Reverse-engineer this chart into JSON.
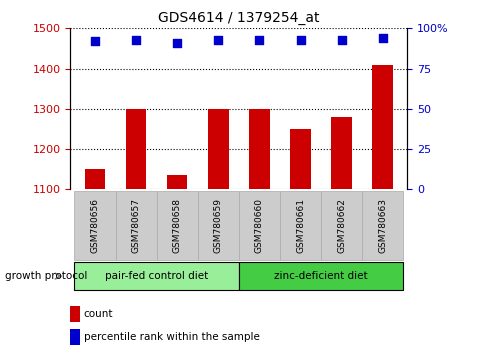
{
  "title": "GDS4614 / 1379254_at",
  "samples": [
    "GSM780656",
    "GSM780657",
    "GSM780658",
    "GSM780659",
    "GSM780660",
    "GSM780661",
    "GSM780662",
    "GSM780663"
  ],
  "counts": [
    1150,
    1300,
    1135,
    1300,
    1300,
    1250,
    1280,
    1410
  ],
  "percentiles": [
    92,
    93,
    91,
    93,
    93,
    93,
    93,
    94
  ],
  "ylim_left": [
    1100,
    1500
  ],
  "ylim_right": [
    0,
    100
  ],
  "yticks_left": [
    1100,
    1200,
    1300,
    1400,
    1500
  ],
  "yticks_right": [
    0,
    25,
    50,
    75,
    100
  ],
  "bar_color": "#cc0000",
  "dot_color": "#0000cc",
  "group1_label": "pair-fed control diet",
  "group2_label": "zinc-deficient diet",
  "group1_color": "#99ee99",
  "group2_color": "#44cc44",
  "group1_indices": [
    0,
    1,
    2,
    3
  ],
  "group2_indices": [
    4,
    5,
    6,
    7
  ],
  "protocol_label": "growth protocol",
  "legend_count_label": "count",
  "legend_pct_label": "percentile rank within the sample",
  "grid_color": "#000000",
  "tick_color_left": "#cc0000",
  "tick_color_right": "#0000cc",
  "bar_width": 0.5,
  "dot_size": 30,
  "xticklabel_bg": "#cccccc",
  "xticklabel_edge": "#aaaaaa"
}
